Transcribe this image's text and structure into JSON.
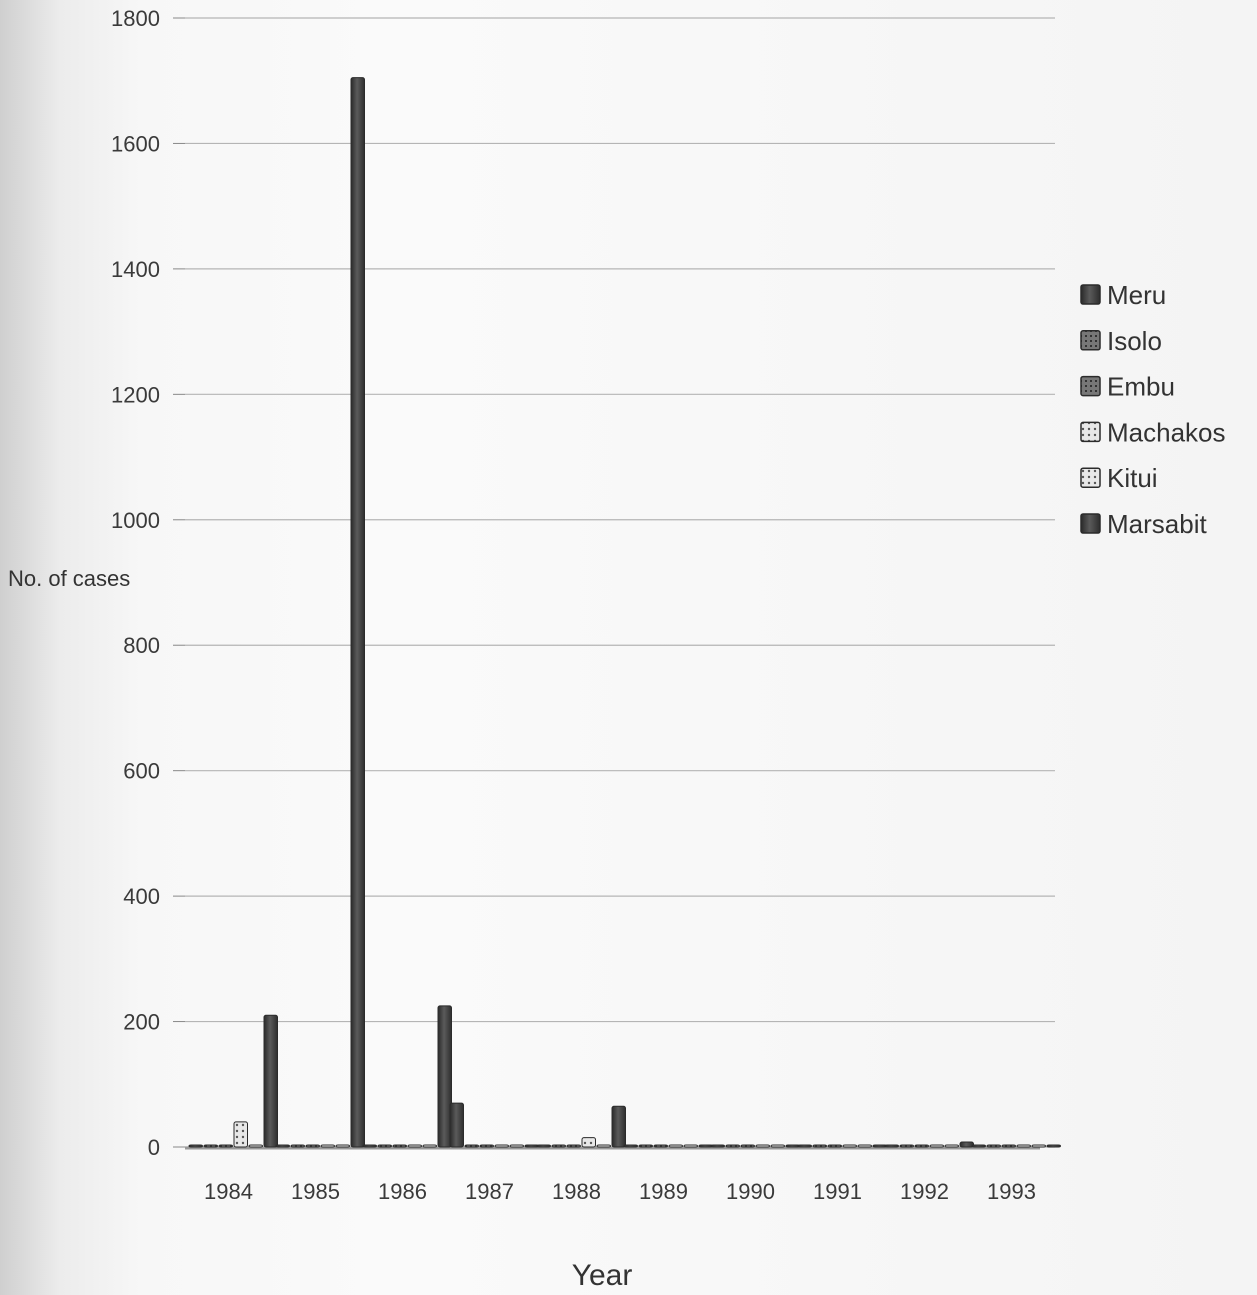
{
  "chart_data": {
    "type": "bar",
    "title": "",
    "xlabel": "Year",
    "ylabel": "No. of cases",
    "ylim": [
      0,
      1800
    ],
    "yticks": [
      0,
      200,
      400,
      600,
      800,
      1000,
      1200,
      1400,
      1600,
      1800
    ],
    "grid": true,
    "legend_position": "right",
    "categories": [
      "1984",
      "1985",
      "1986",
      "1987",
      "1988",
      "1989",
      "1990",
      "1991",
      "1992",
      "1993"
    ],
    "series": [
      {
        "name": "Meru",
        "color": "#4a4a4a",
        "values": [
          2,
          1,
          1,
          70,
          1,
          1,
          1,
          1,
          1,
          1
        ]
      },
      {
        "name": "Isolo",
        "color": "#5c5c5c",
        "values": [
          1,
          1,
          1,
          1,
          1,
          1,
          1,
          1,
          1,
          1
        ]
      },
      {
        "name": "Embu",
        "color": "#505050",
        "values": [
          1,
          1,
          1,
          1,
          1,
          1,
          1,
          1,
          1,
          1
        ]
      },
      {
        "name": "Machakos",
        "color": "#e6e6e6",
        "values": [
          40,
          1,
          1,
          1,
          15,
          1,
          1,
          1,
          1,
          1
        ]
      },
      {
        "name": "Kitui",
        "color": "#d9d9d9",
        "values": [
          1,
          1,
          2,
          3,
          1,
          2,
          2,
          2,
          2,
          2
        ]
      },
      {
        "name": "Marsabit",
        "color": "#3a3a3a",
        "values": [
          210,
          1705,
          225,
          1,
          65,
          2,
          2,
          3,
          8,
          3
        ]
      }
    ]
  }
}
